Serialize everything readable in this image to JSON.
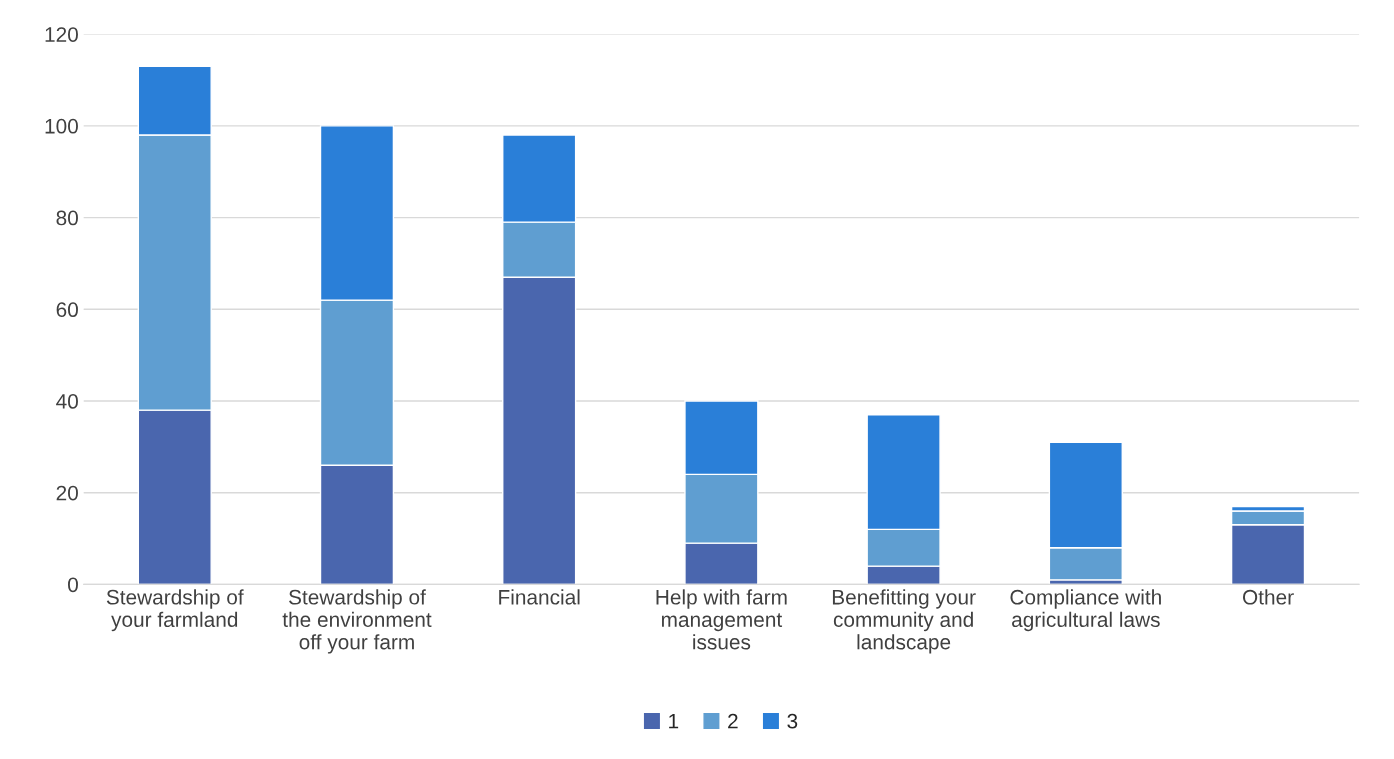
{
  "chart_data": {
    "type": "bar",
    "stacked": true,
    "categories": [
      "Stewardship of\nyour farmland",
      "Stewardship of\nthe environment\noff your farm",
      "Financial",
      "Help with farm\nmanagement\nissues",
      "Benefitting your\ncommunity and\nlandscape",
      "Compliance with\nagricultural laws",
      "Other"
    ],
    "series": [
      {
        "name": "1",
        "color": "#4a66ae",
        "values": [
          38,
          26,
          67,
          9,
          4,
          1,
          13
        ]
      },
      {
        "name": "2",
        "color": "#5f9ed1",
        "values": [
          60,
          36,
          12,
          15,
          8,
          7,
          3
        ]
      },
      {
        "name": "3",
        "color": "#2a7fd8",
        "values": [
          15,
          38,
          19,
          16,
          25,
          23,
          1
        ]
      }
    ],
    "ylim": [
      0,
      120
    ],
    "yticks": [
      0,
      20,
      40,
      60,
      80,
      100,
      120
    ],
    "grid": "y",
    "legend": "bottom"
  }
}
